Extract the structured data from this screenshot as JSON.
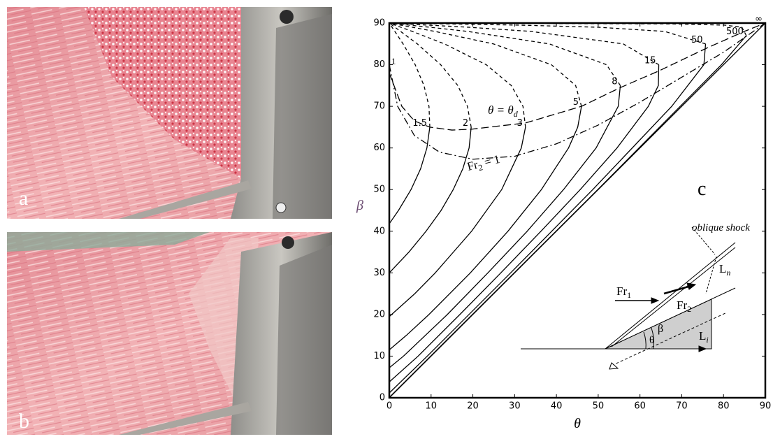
{
  "photos": {
    "a": "a",
    "b": "b"
  },
  "chart_data": {
    "type": "line",
    "xlabel": "θ",
    "ylabel": "β",
    "xlim": [
      0,
      90
    ],
    "ylim": [
      0,
      90
    ],
    "xticks": [
      0,
      10,
      20,
      30,
      40,
      50,
      60,
      70,
      80,
      90
    ],
    "yticks": [
      0,
      10,
      20,
      30,
      40,
      50,
      60,
      70,
      80,
      90
    ],
    "series": [
      {
        "name": "1.5",
        "color": "#000000",
        "style": "solid",
        "x": [
          0,
          2.2,
          5.2,
          7.5,
          9.0,
          9.7
        ],
        "values": [
          41.8,
          45,
          50,
          55,
          60,
          65
        ]
      },
      {
        "color": "#000000",
        "style": "dashed",
        "x": [
          9.7,
          9.5,
          8.3,
          6.2,
          3.3,
          0
        ],
        "values": [
          65,
          70,
          75,
          80,
          85,
          90
        ]
      },
      {
        "name": "2",
        "color": "#000000",
        "style": "solid",
        "x": [
          0,
          4.7,
          8.8,
          12.4,
          15.3,
          17.6,
          19.1,
          19.6
        ],
        "values": [
          30,
          35,
          40,
          45,
          50,
          55,
          60,
          65
        ]
      },
      {
        "color": "#000000",
        "style": "dashed",
        "x": [
          19.6,
          18.7,
          16.4,
          12.3,
          6.7,
          2.7,
          0
        ],
        "values": [
          65,
          70,
          75,
          80,
          85,
          88,
          90
        ]
      },
      {
        "name": "3",
        "color": "#000000",
        "style": "solid",
        "x": [
          0,
          6.1,
          11.0,
          19.7,
          26.9,
          31.6,
          32.6
        ],
        "values": [
          19.5,
          25,
          30,
          40,
          50,
          60,
          65
        ]
      },
      {
        "color": "#000000",
        "style": "dashed",
        "x": [
          32.6,
          32.0,
          29.2,
          23.2,
          13.2,
          5.5,
          0
        ],
        "values": [
          65,
          70,
          75,
          80,
          85,
          88,
          90
        ]
      },
      {
        "name": "5",
        "color": "#000000",
        "style": "solid",
        "x": [
          0,
          4.1,
          9.5,
          19.4,
          28.4,
          36.4,
          42.9,
          45.1,
          46.0
        ],
        "values": [
          11.5,
          15,
          20,
          30,
          40,
          50,
          60,
          65,
          70
        ]
      },
      {
        "color": "#000000",
        "style": "dashed",
        "x": [
          46.0,
          44.6,
          38.8,
          24.9,
          10.9,
          5.5,
          0
        ],
        "values": [
          70,
          75,
          80,
          85,
          88,
          89,
          90
        ]
      },
      {
        "name": "8",
        "color": "#000000",
        "style": "solid",
        "x": [
          0,
          3.4,
          13.9,
          23.6,
          33.0,
          41.7,
          49.5,
          54.8,
          55.3
        ],
        "values": [
          7.2,
          10,
          20,
          30,
          40,
          50,
          60,
          70,
          75
        ]
      },
      {
        "color": "#000000",
        "style": "dashed",
        "x": [
          55.3,
          52.0,
          38.3,
          18.7,
          9.7,
          0
        ],
        "values": [
          75,
          80,
          85,
          88,
          89,
          90
        ]
      },
      {
        "name": "15",
        "color": "#000000",
        "style": "solid",
        "x": [
          0,
          6.9,
          16.9,
          26.7,
          36.3,
          45.7,
          54.5,
          62.0,
          64.4,
          64.5
        ],
        "values": [
          3.8,
          10,
          20,
          30,
          40,
          50,
          60,
          70,
          75,
          80
        ]
      },
      {
        "color": "#000000",
        "style": "dashed",
        "x": [
          64.5,
          56.0,
          33.9,
          18.9,
          0
        ],
        "values": [
          80,
          85,
          88,
          89,
          90
        ]
      },
      {
        "name": "50",
        "color": "#000000",
        "style": "solid",
        "x": [
          0,
          9.1,
          29.05,
          48.7,
          67.6,
          75.3,
          75.7
        ],
        "values": [
          1.15,
          10,
          30,
          50,
          70,
          80,
          85
        ]
      },
      {
        "color": "#000000",
        "style": "dashed",
        "x": [
          75.7,
          65.9,
          50.0,
          31.2,
          13.7,
          0
        ],
        "values": [
          85,
          88,
          89,
          89.5,
          89.8,
          90
        ]
      },
      {
        "name": "500",
        "color": "#000000",
        "style": "solid",
        "x": [
          0,
          9.9,
          49.9,
          79.5,
          85.45
        ],
        "values": [
          0.1,
          10,
          50,
          80,
          87
        ]
      },
      {
        "color": "#000000",
        "style": "dashed",
        "x": [
          85.45,
          84.4,
          80.3,
          67.7,
          0
        ],
        "values": [
          87,
          89,
          89.5,
          89.8,
          90
        ]
      },
      {
        "name": "∞",
        "color": "#000000",
        "style": "solid",
        "x": [
          0,
          90
        ],
        "values": [
          0,
          90
        ]
      },
      {
        "color": "#000000",
        "style": "long-dash",
        "x": [
          0,
          3,
          6,
          9.7,
          15,
          19.6,
          32.6,
          46,
          55.3,
          64.5,
          76,
          85,
          90
        ],
        "values": [
          78,
          70,
          66.5,
          65,
          64.3,
          64.5,
          66,
          70,
          74.5,
          78.5,
          84,
          88,
          90
        ]
      },
      {
        "color": "#000000",
        "style": "dash-dot",
        "x": [
          0,
          2,
          6,
          12,
          20,
          30,
          40,
          50,
          60,
          70,
          80,
          90
        ],
        "values": [
          80,
          70,
          63,
          59,
          57.3,
          58,
          61,
          65.5,
          71,
          77,
          83,
          90
        ]
      }
    ],
    "annotations": {
      "fr1_one": "1",
      "theta_d": {
        "text": "θ = θ",
        "sub": "d"
      },
      "fr2_one": {
        "text": "Fr",
        "sub": "2",
        "after": " = 1"
      },
      "panel": "c"
    },
    "inset": {
      "shock": "oblique shock",
      "fr1": {
        "text": "Fr",
        "sub": "1"
      },
      "fr2": {
        "text": "Fr",
        "sub": "2"
      },
      "ln": {
        "text": "L",
        "sub": "n"
      },
      "li": {
        "text": "L",
        "sub": "i"
      },
      "beta": "β",
      "theta": "θ"
    }
  }
}
